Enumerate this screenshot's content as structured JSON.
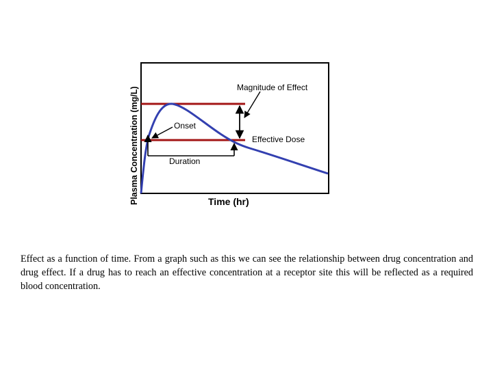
{
  "figure": {
    "y_axis_label": "Plasma Concentration (mg/L)",
    "x_axis_label": "Time (hr)",
    "annotations": {
      "magnitude": "Magnitude of Effect",
      "onset": "Onset",
      "effective_dose": "Effective Dose",
      "duration": "Duration"
    },
    "colors": {
      "curve": "#3340b0",
      "threshold_lines": "#a31515",
      "frame": "#000000",
      "arrows": "#000000"
    }
  },
  "caption": "Effect as a function of time. From a graph such as this we can see the relationship between drug concentration and drug effect. If a drug has to reach an effective concentration at a receptor site this will be reflected as a required blood concentration."
}
